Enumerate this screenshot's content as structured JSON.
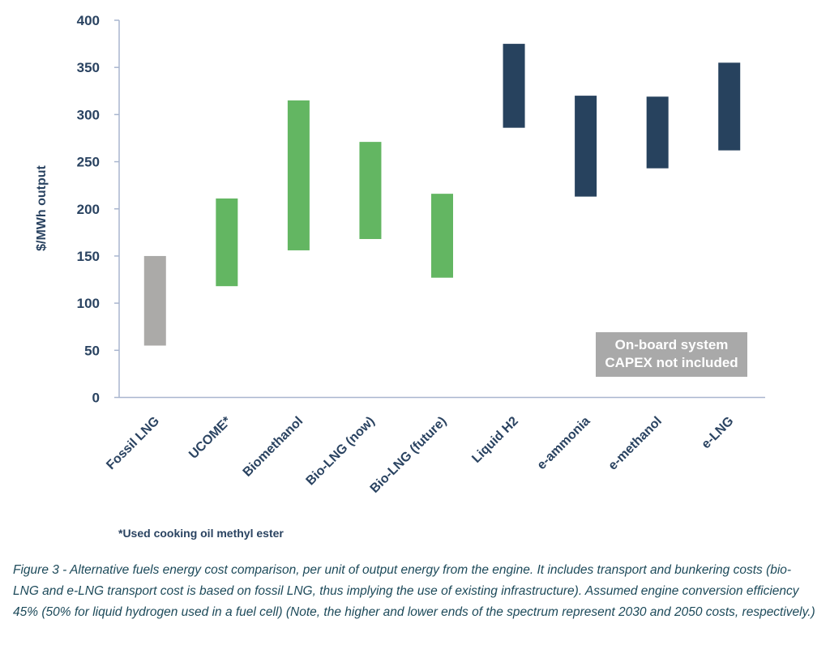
{
  "chart_data": {
    "type": "bar",
    "subtype": "floating-range",
    "ylabel": "$/MWh output",
    "xlabel": "",
    "ylim": [
      0,
      400
    ],
    "yticks": [
      0,
      50,
      100,
      150,
      200,
      250,
      300,
      350,
      400
    ],
    "grid": false,
    "categories": [
      "Fossil LNG",
      "UCOME*",
      "Biomethanol",
      "Bio-LNG (now)",
      "Bio-LNG (future)",
      "Liquid H2",
      "e-ammonia",
      "e-methanol",
      "e-LNG"
    ],
    "low": [
      55,
      118,
      156,
      168,
      127,
      286,
      213,
      243,
      262
    ],
    "high": [
      150,
      211,
      315,
      271,
      216,
      375,
      320,
      319,
      355
    ],
    "colors": [
      "#abaaa8",
      "#63b662",
      "#63b662",
      "#63b662",
      "#63b662",
      "#27425e",
      "#27425e",
      "#27425e",
      "#27425e"
    ],
    "annotation": "On-board system CAPEX not included"
  },
  "annotation_lines": [
    "On-board system",
    "CAPEX not included"
  ],
  "footnote": "*Used cooking oil methyl ester",
  "caption": "Figure 3 - Alternative fuels energy cost comparison, per unit of output energy from the engine. It includes transport and bunkering costs (bio-LNG and e-LNG transport cost is based on fossil LNG, thus implying the use of existing infrastructure). Assumed engine conversion efficiency 45% (50% for liquid hydrogen used in a fuel cell) (Note, the higher and lower ends of the spectrum represent 2030 and 2050 costs, respectively.)",
  "colors": {
    "axis": "#a9b6cf",
    "text": "#2a4361",
    "caption": "#1d4a5a"
  }
}
